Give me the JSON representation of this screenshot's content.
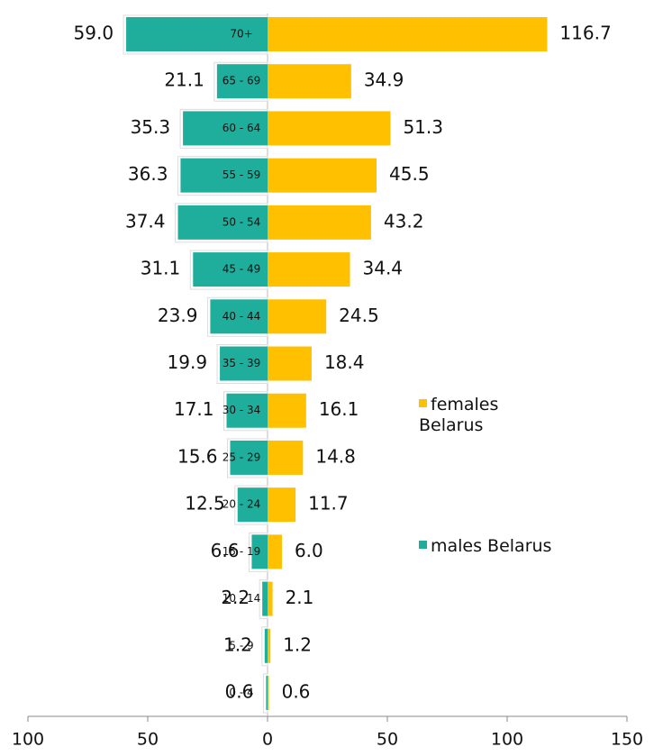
{
  "chart_data": {
    "type": "pyramid",
    "categories": [
      "70+",
      "65 - 69",
      "60 - 64",
      "55 - 59",
      "50 - 54",
      "45 - 49",
      "40 - 44",
      "35 - 39",
      "30 - 34",
      "25 - 29",
      "20 - 24",
      "15 - 19",
      "10 - 14",
      "5 - 9",
      "0 - 4"
    ],
    "series": [
      {
        "name": "males Belarus",
        "color": "#1fae9c",
        "direction": "left",
        "values": [
          59.0,
          21.1,
          35.3,
          36.3,
          37.4,
          31.1,
          23.9,
          19.9,
          17.1,
          15.6,
          12.5,
          6.6,
          2.2,
          1.2,
          0.6
        ],
        "value_labels": [
          "59.0",
          "21.1",
          "35.3",
          "36.3",
          "37.4",
          "31.1",
          "23.9",
          "19.9",
          "17.1",
          "15.6",
          "12.5",
          "6.6",
          "2.2",
          "1.2",
          "0.6"
        ]
      },
      {
        "name": "females Belarus",
        "color": "#ffc000",
        "direction": "right",
        "values": [
          116.7,
          34.9,
          51.3,
          45.5,
          43.2,
          34.4,
          24.5,
          18.4,
          16.1,
          14.8,
          11.7,
          6.0,
          2.1,
          1.2,
          0.6
        ],
        "value_labels": [
          "116.7",
          "34.9",
          "51.3",
          "45.5",
          "43.2",
          "34.4",
          "24.5",
          "18.4",
          "16.1",
          "14.8",
          "11.7",
          "6.0",
          "2.1",
          "1.2",
          "0.6"
        ]
      }
    ],
    "xlim": [
      -100,
      150
    ],
    "xticks": [
      {
        "value": -100,
        "label": "100"
      },
      {
        "value": -50,
        "label": "50"
      },
      0,
      50,
      100,
      150
    ]
  }
}
